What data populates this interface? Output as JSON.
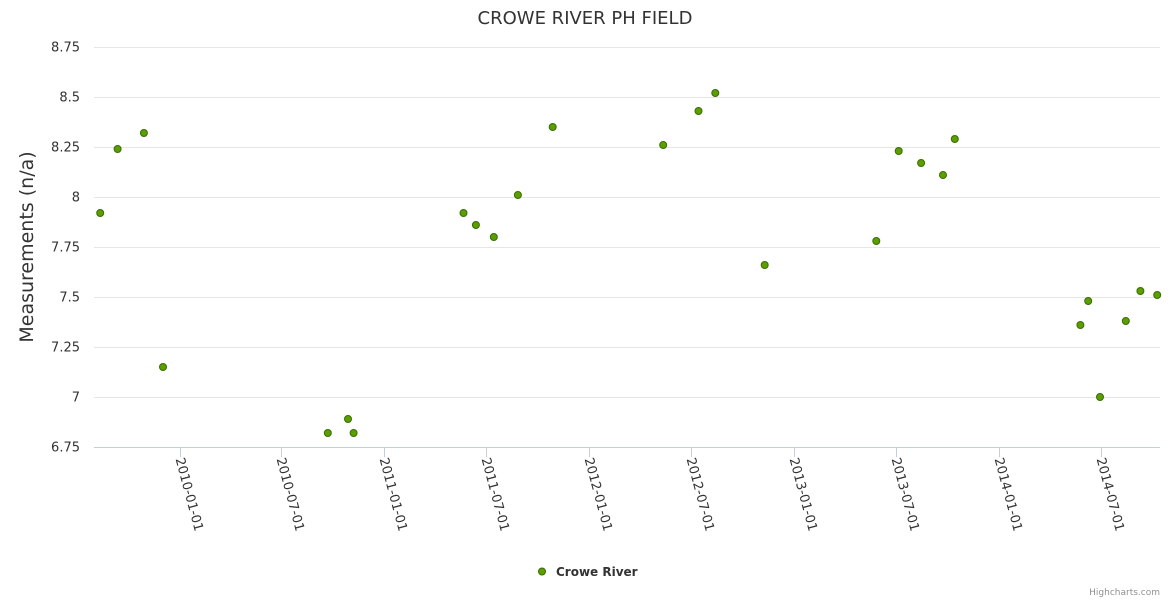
{
  "chart_data": {
    "type": "scatter",
    "title": "CROWE RIVER PH FIELD",
    "xlabel": "",
    "ylabel": "Measurements (n/a)",
    "ylim": [
      6.75,
      8.75
    ],
    "yticks": [
      "6.75",
      "7",
      "7.25",
      "7.5",
      "7.75",
      "8",
      "8.25",
      "8.5",
      "8.75"
    ],
    "ytick_values": [
      6.75,
      7,
      7.25,
      7.5,
      7.75,
      8,
      8.25,
      8.5,
      8.75
    ],
    "xlim": [
      "2009-08-01",
      "2014-10-15"
    ],
    "xticks": [
      "2010-01-01",
      "2010-07-01",
      "2011-01-01",
      "2011-07-01",
      "2012-01-01",
      "2012-07-01",
      "2013-01-01",
      "2013-07-01",
      "2014-01-01",
      "2014-07-01"
    ],
    "grid": true,
    "legend_position": "bottom-center",
    "series": [
      {
        "name": "Crowe River",
        "color": "#5a9e00",
        "points": [
          {
            "x": "2009-08-12",
            "y": 7.92
          },
          {
            "x": "2009-09-12",
            "y": 8.24
          },
          {
            "x": "2009-10-29",
            "y": 8.32
          },
          {
            "x": "2009-12-02",
            "y": 7.15
          },
          {
            "x": "2010-09-22",
            "y": 6.82
          },
          {
            "x": "2010-10-28",
            "y": 6.89
          },
          {
            "x": "2010-11-07",
            "y": 6.82
          },
          {
            "x": "2011-05-22",
            "y": 7.92
          },
          {
            "x": "2011-06-13",
            "y": 7.86
          },
          {
            "x": "2011-07-15",
            "y": 7.8
          },
          {
            "x": "2011-08-27",
            "y": 8.01
          },
          {
            "x": "2011-10-28",
            "y": 8.35
          },
          {
            "x": "2012-05-12",
            "y": 8.26
          },
          {
            "x": "2012-07-14",
            "y": 8.43
          },
          {
            "x": "2012-08-13",
            "y": 8.52
          },
          {
            "x": "2012-11-09",
            "y": 7.66
          },
          {
            "x": "2013-05-27",
            "y": 7.78
          },
          {
            "x": "2013-07-06",
            "y": 8.23
          },
          {
            "x": "2013-08-15",
            "y": 8.17
          },
          {
            "x": "2013-09-23",
            "y": 8.11
          },
          {
            "x": "2013-10-14",
            "y": 8.29
          },
          {
            "x": "2014-05-26",
            "y": 7.36
          },
          {
            "x": "2014-06-09",
            "y": 7.48
          },
          {
            "x": "2014-06-30",
            "y": 7.0
          },
          {
            "x": "2014-08-15",
            "y": 7.38
          },
          {
            "x": "2014-09-10",
            "y": 7.53
          },
          {
            "x": "2014-10-10",
            "y": 7.51
          }
        ]
      }
    ]
  },
  "credits": "Highcharts.com"
}
